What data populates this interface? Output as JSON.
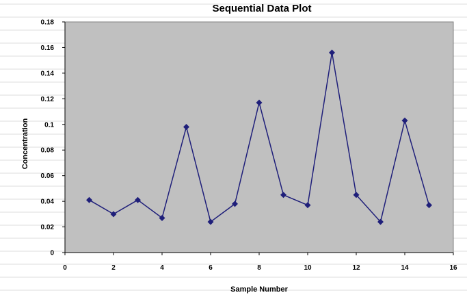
{
  "chart_data": {
    "type": "line",
    "title": "Sequential Data Plot",
    "xlabel": "Sample Number",
    "ylabel": "Concentration",
    "xlim": [
      0,
      16
    ],
    "ylim": [
      0,
      0.18
    ],
    "xticks": [
      "0",
      "2",
      "4",
      "6",
      "8",
      "10",
      "12",
      "14",
      "16"
    ],
    "yticks": [
      "0",
      "0.02",
      "0.04",
      "0.06",
      "0.08",
      "0.1",
      "0.12",
      "0.14",
      "0.16",
      "0.18"
    ],
    "x": [
      1,
      2,
      3,
      4,
      5,
      6,
      7,
      8,
      9,
      10,
      11,
      12,
      13,
      14,
      15
    ],
    "y": [
      0.041,
      0.03,
      0.041,
      0.027,
      0.098,
      0.024,
      0.038,
      0.117,
      0.045,
      0.037,
      0.156,
      0.045,
      0.024,
      0.103,
      0.037
    ],
    "grid": false,
    "legend": "none",
    "colors": {
      "plot_background": "#c0c0c0",
      "series": "#1f1f7a"
    }
  }
}
